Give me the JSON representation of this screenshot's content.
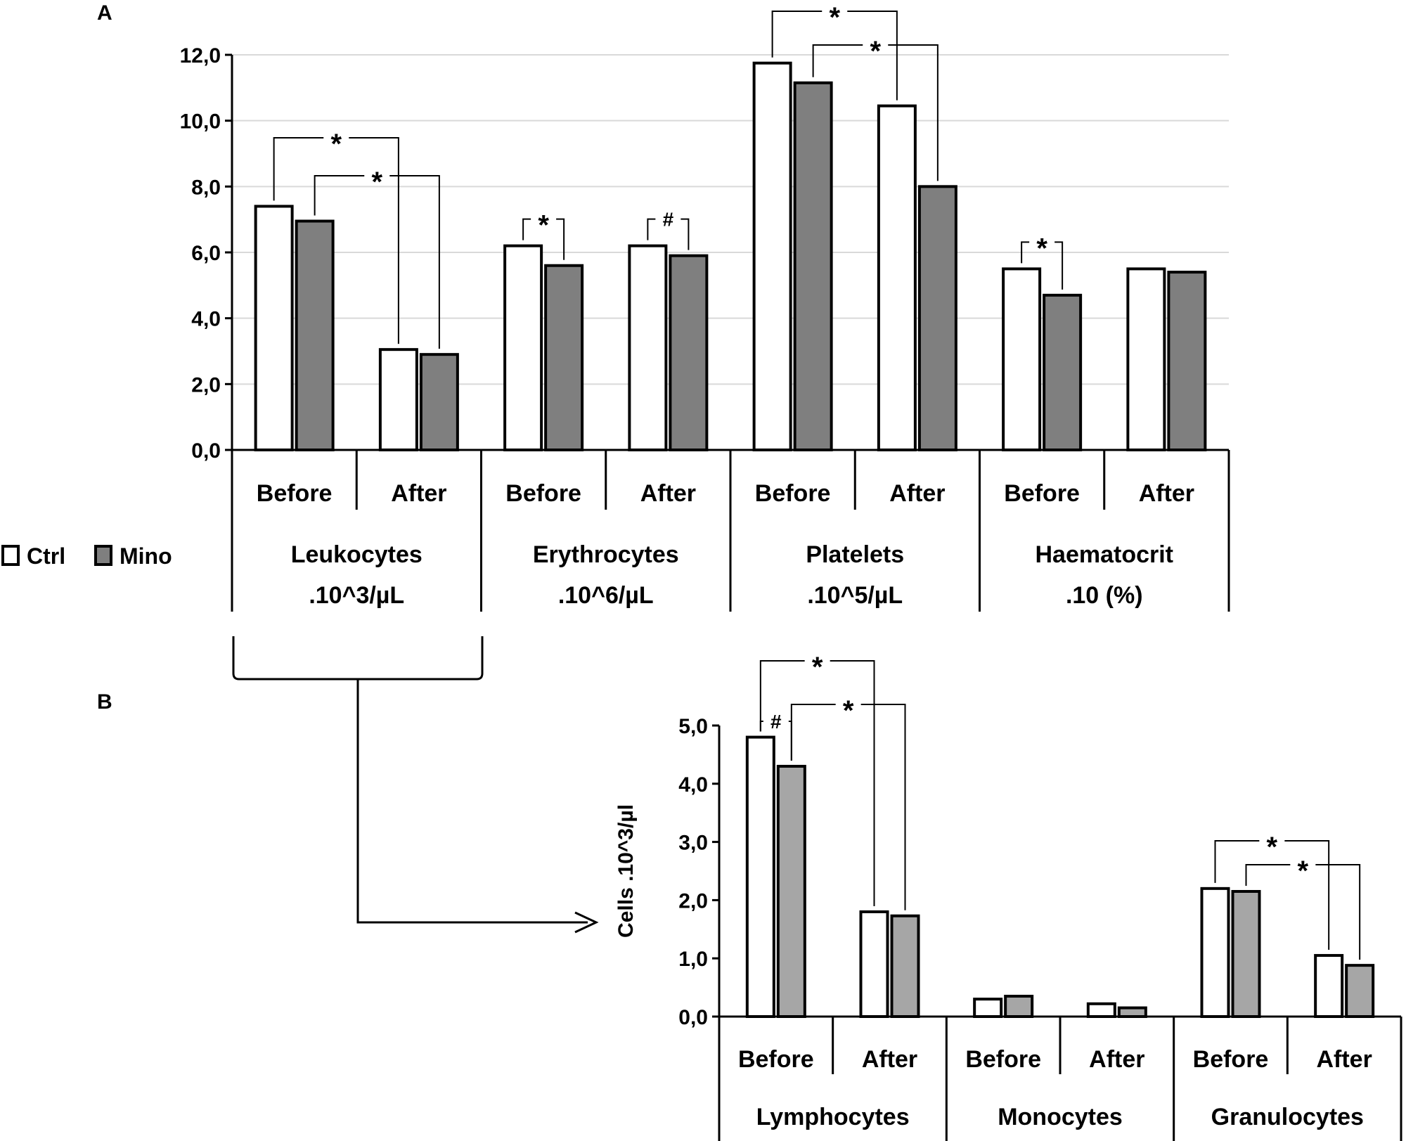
{
  "chart_data": [
    {
      "panel": "A",
      "type": "bar",
      "ylim": [
        0,
        12
      ],
      "yticks": [
        0,
        2,
        4,
        6,
        8,
        10,
        12
      ],
      "ytick_labels": [
        "0,0",
        "2,0",
        "4,0",
        "6,0",
        "8,0",
        "10,0",
        "12,0"
      ],
      "grid": true,
      "ylabel": "",
      "groups": [
        {
          "label": "Leukocytes",
          "unit": ".10^3/µL",
          "periods": [
            {
              "label": "Before",
              "ctrl": 7.4,
              "mino": 6.95
            },
            {
              "label": "After",
              "ctrl": 3.05,
              "mino": 2.9
            }
          ]
        },
        {
          "label": "Erythrocytes",
          "unit": ".10^6/µL",
          "periods": [
            {
              "label": "Before",
              "ctrl": 6.2,
              "mino": 5.6
            },
            {
              "label": "After",
              "ctrl": 6.2,
              "mino": 5.9
            }
          ]
        },
        {
          "label": "Platelets",
          "unit": ".10^5/µL",
          "periods": [
            {
              "label": "Before",
              "ctrl": 11.75,
              "mino": 11.15
            },
            {
              "label": "After",
              "ctrl": 10.45,
              "mino": 8.0
            }
          ]
        },
        {
          "label": "Haematocrit",
          "unit": ".10 (%)",
          "periods": [
            {
              "label": "Before",
              "ctrl": 5.5,
              "mino": 4.7
            },
            {
              "label": "After",
              "ctrl": 5.5,
              "mino": 5.4
            }
          ]
        }
      ],
      "annotations": [
        {
          "g": 0,
          "from": [
            0,
            0
          ],
          "to": [
            1,
            0
          ],
          "mark": "*"
        },
        {
          "g": 0,
          "from": [
            0,
            1
          ],
          "to": [
            1,
            1
          ],
          "mark": "*"
        },
        {
          "g": 1,
          "from": [
            0,
            0
          ],
          "to": [
            0,
            1
          ],
          "mark": "*"
        },
        {
          "g": 1,
          "from": [
            1,
            0
          ],
          "to": [
            1,
            1
          ],
          "mark": "#"
        },
        {
          "g": 2,
          "from": [
            0,
            0
          ],
          "to": [
            1,
            0
          ],
          "mark": "*"
        },
        {
          "g": 2,
          "from": [
            0,
            1
          ],
          "to": [
            1,
            1
          ],
          "mark": "*"
        },
        {
          "g": 3,
          "from": [
            0,
            0
          ],
          "to": [
            0,
            1
          ],
          "mark": "*"
        }
      ]
    },
    {
      "panel": "B",
      "type": "bar",
      "ylim": [
        0,
        5
      ],
      "yticks": [
        0,
        1,
        2,
        3,
        4,
        5
      ],
      "ytick_labels": [
        "0,0",
        "1,0",
        "2,0",
        "3,0",
        "4,0",
        "5,0"
      ],
      "grid": false,
      "ylabel": "Cells .10^3/µl",
      "groups": [
        {
          "label": "Lymphocytes",
          "periods": [
            {
              "label": "Before",
              "ctrl": 4.8,
              "mino": 4.3
            },
            {
              "label": "After",
              "ctrl": 1.8,
              "mino": 1.73
            }
          ]
        },
        {
          "label": "Monocytes",
          "periods": [
            {
              "label": "Before",
              "ctrl": 0.3,
              "mino": 0.35
            },
            {
              "label": "After",
              "ctrl": 0.22,
              "mino": 0.15
            }
          ]
        },
        {
          "label": "Granulocytes",
          "periods": [
            {
              "label": "Before",
              "ctrl": 2.2,
              "mino": 2.15
            },
            {
              "label": "After",
              "ctrl": 1.05,
              "mino": 0.88
            }
          ]
        }
      ],
      "annotations": [
        {
          "g": 0,
          "from": [
            0,
            0
          ],
          "to": [
            1,
            0
          ],
          "mark": "*"
        },
        {
          "g": 0,
          "from": [
            0,
            0
          ],
          "to": [
            0,
            1
          ],
          "mark": "#"
        },
        {
          "g": 0,
          "from": [
            0,
            1
          ],
          "to": [
            1,
            1
          ],
          "mark": "*"
        },
        {
          "g": 2,
          "from": [
            0,
            0
          ],
          "to": [
            1,
            0
          ],
          "mark": "*"
        },
        {
          "g": 2,
          "from": [
            0,
            1
          ],
          "to": [
            1,
            1
          ],
          "mark": "*"
        }
      ]
    }
  ],
  "legend": {
    "items": [
      {
        "label": "Ctrl",
        "color": "#ffffff"
      },
      {
        "label": "Mino",
        "color": "#7f7f7f"
      }
    ]
  },
  "colors": {
    "ctrl": "#ffffff",
    "mino_a": "#7f7f7f",
    "mino_b": "#a6a6a6",
    "grid": "#d9d9d9",
    "axis": "#000000"
  }
}
